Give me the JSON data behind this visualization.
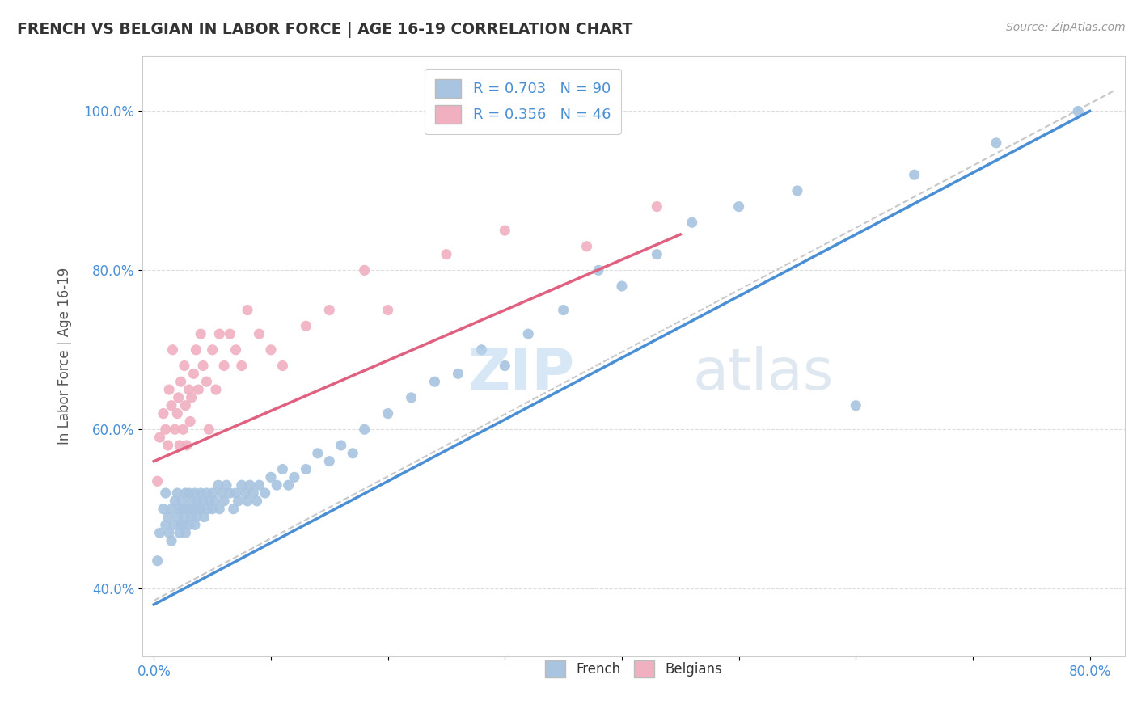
{
  "title": "FRENCH VS BELGIAN IN LABOR FORCE | AGE 16-19 CORRELATION CHART",
  "source": "Source: ZipAtlas.com",
  "ylabel": "In Labor Force | Age 16-19",
  "french_R": 0.703,
  "french_N": 90,
  "belgian_R": 0.356,
  "belgian_N": 46,
  "french_color": "#a8c4e0",
  "belgian_color": "#f0b0c0",
  "french_line_color": "#4a8fd4",
  "belgian_line_color": "#e06080",
  "diagonal_color": "#c8c8c8",
  "french_line": [
    0.0,
    0.38,
    0.8,
    1.0
  ],
  "belgian_line": [
    0.0,
    0.56,
    0.45,
    0.845
  ],
  "french_x": [
    0.003,
    0.005,
    0.008,
    0.01,
    0.01,
    0.012,
    0.013,
    0.015,
    0.015,
    0.017,
    0.018,
    0.02,
    0.02,
    0.022,
    0.022,
    0.023,
    0.024,
    0.025,
    0.025,
    0.026,
    0.027,
    0.027,
    0.028,
    0.03,
    0.03,
    0.03,
    0.032,
    0.032,
    0.033,
    0.035,
    0.035,
    0.036,
    0.037,
    0.038,
    0.04,
    0.04,
    0.042,
    0.043,
    0.045,
    0.046,
    0.047,
    0.05,
    0.05,
    0.052,
    0.055,
    0.056,
    0.058,
    0.06,
    0.062,
    0.065,
    0.068,
    0.07,
    0.072,
    0.075,
    0.078,
    0.08,
    0.082,
    0.085,
    0.088,
    0.09,
    0.095,
    0.1,
    0.105,
    0.11,
    0.115,
    0.12,
    0.13,
    0.14,
    0.15,
    0.16,
    0.17,
    0.18,
    0.2,
    0.22,
    0.24,
    0.26,
    0.28,
    0.3,
    0.32,
    0.35,
    0.38,
    0.4,
    0.43,
    0.46,
    0.5,
    0.55,
    0.6,
    0.65,
    0.72,
    0.79
  ],
  "french_y": [
    0.435,
    0.47,
    0.5,
    0.48,
    0.52,
    0.49,
    0.47,
    0.5,
    0.46,
    0.48,
    0.51,
    0.49,
    0.52,
    0.47,
    0.5,
    0.48,
    0.51,
    0.5,
    0.48,
    0.49,
    0.52,
    0.47,
    0.5,
    0.48,
    0.5,
    0.52,
    0.49,
    0.51,
    0.5,
    0.48,
    0.52,
    0.49,
    0.51,
    0.5,
    0.5,
    0.52,
    0.51,
    0.49,
    0.52,
    0.5,
    0.51,
    0.5,
    0.52,
    0.51,
    0.53,
    0.5,
    0.52,
    0.51,
    0.53,
    0.52,
    0.5,
    0.52,
    0.51,
    0.53,
    0.52,
    0.51,
    0.53,
    0.52,
    0.51,
    0.53,
    0.52,
    0.54,
    0.53,
    0.55,
    0.53,
    0.54,
    0.55,
    0.57,
    0.56,
    0.58,
    0.57,
    0.6,
    0.62,
    0.64,
    0.66,
    0.67,
    0.7,
    0.68,
    0.72,
    0.75,
    0.8,
    0.78,
    0.82,
    0.86,
    0.88,
    0.9,
    0.63,
    0.92,
    0.96,
    1.0
  ],
  "belgian_x": [
    0.003,
    0.005,
    0.008,
    0.01,
    0.012,
    0.013,
    0.015,
    0.016,
    0.018,
    0.02,
    0.021,
    0.022,
    0.023,
    0.025,
    0.026,
    0.027,
    0.028,
    0.03,
    0.031,
    0.032,
    0.034,
    0.036,
    0.038,
    0.04,
    0.042,
    0.045,
    0.047,
    0.05,
    0.053,
    0.056,
    0.06,
    0.065,
    0.07,
    0.075,
    0.08,
    0.09,
    0.1,
    0.11,
    0.13,
    0.15,
    0.18,
    0.2,
    0.25,
    0.3,
    0.37,
    0.43
  ],
  "belgian_y": [
    0.535,
    0.59,
    0.62,
    0.6,
    0.58,
    0.65,
    0.63,
    0.7,
    0.6,
    0.62,
    0.64,
    0.58,
    0.66,
    0.6,
    0.68,
    0.63,
    0.58,
    0.65,
    0.61,
    0.64,
    0.67,
    0.7,
    0.65,
    0.72,
    0.68,
    0.66,
    0.6,
    0.7,
    0.65,
    0.72,
    0.68,
    0.72,
    0.7,
    0.68,
    0.75,
    0.72,
    0.7,
    0.68,
    0.73,
    0.75,
    0.8,
    0.75,
    0.82,
    0.85,
    0.83,
    0.88
  ],
  "xlim": [
    -0.01,
    0.83
  ],
  "ylim": [
    0.315,
    1.07
  ],
  "x_ticks": [
    0.0,
    0.1,
    0.2,
    0.3,
    0.4,
    0.5,
    0.6,
    0.7,
    0.8
  ],
  "x_tick_labels": [
    "0.0%",
    "",
    "",
    "",
    "",
    "",
    "",
    "",
    "80.0%"
  ],
  "y_ticks": [
    0.4,
    0.6,
    0.8,
    1.0
  ],
  "y_tick_labels": [
    "40.0%",
    "60.0%",
    "80.0%",
    "100.0%"
  ]
}
